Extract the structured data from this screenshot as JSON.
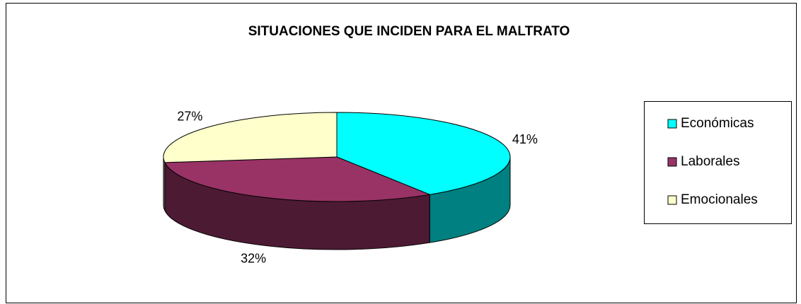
{
  "chart_data": {
    "type": "pie",
    "title": "SITUACIONES QUE INCIDEN PARA EL MALTRATO",
    "categories": [
      "Económicas",
      "Laborales",
      "Emocionales"
    ],
    "values": [
      41,
      32,
      27
    ],
    "value_labels": [
      "41%",
      "32%",
      "27%"
    ],
    "colors": [
      "#00FFFF",
      "#993366",
      "#FFFFCC"
    ],
    "legend": "right"
  }
}
